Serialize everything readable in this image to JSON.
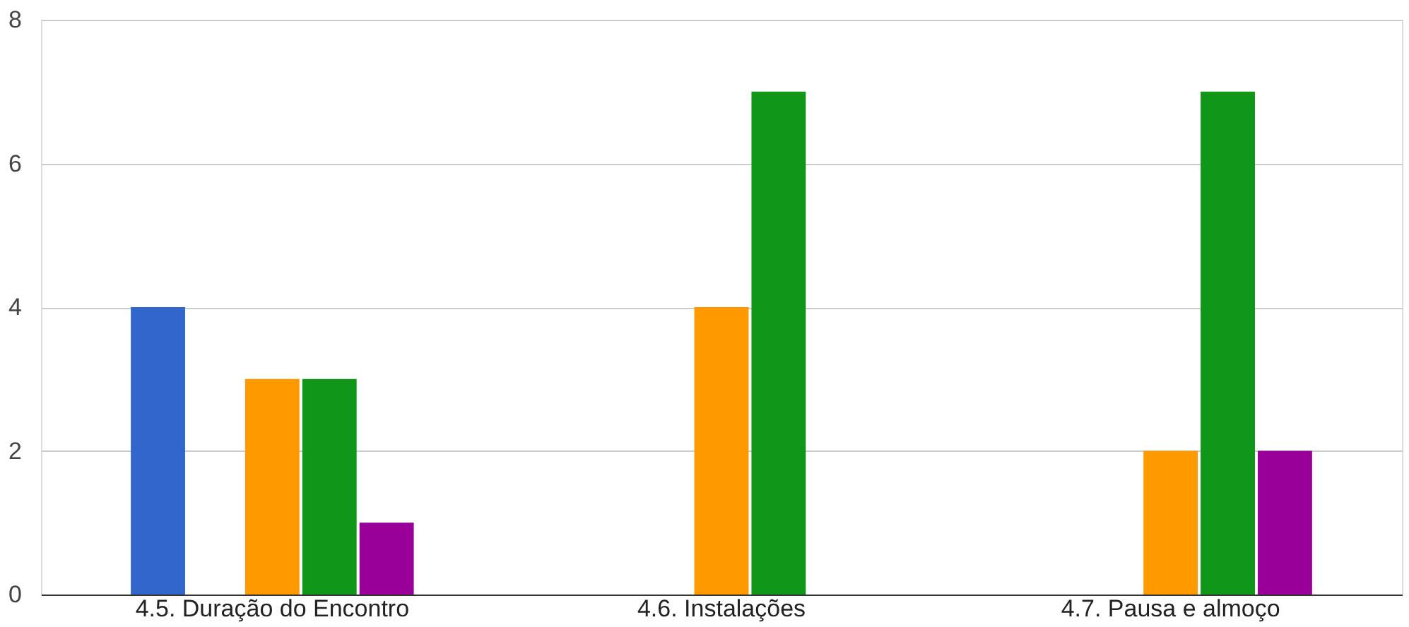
{
  "chart_data": {
    "type": "bar",
    "categories": [
      "4.5. Duração do Encontro",
      "4.6. Instalações",
      "4.7. Pausa e almoço"
    ],
    "series": [
      {
        "color": "#3366cc",
        "values": [
          4,
          0,
          0
        ]
      },
      {
        "color": "#dc3912",
        "values": [
          0,
          0,
          0
        ]
      },
      {
        "color": "#ff9900",
        "values": [
          3,
          4,
          2
        ]
      },
      {
        "color": "#109618",
        "values": [
          3,
          7,
          7
        ]
      },
      {
        "color": "#990099",
        "values": [
          1,
          0,
          2
        ]
      }
    ],
    "ylim": [
      0,
      8
    ],
    "yticks": [
      0,
      2,
      4,
      6,
      8
    ],
    "grid": "y",
    "legend": false
  }
}
